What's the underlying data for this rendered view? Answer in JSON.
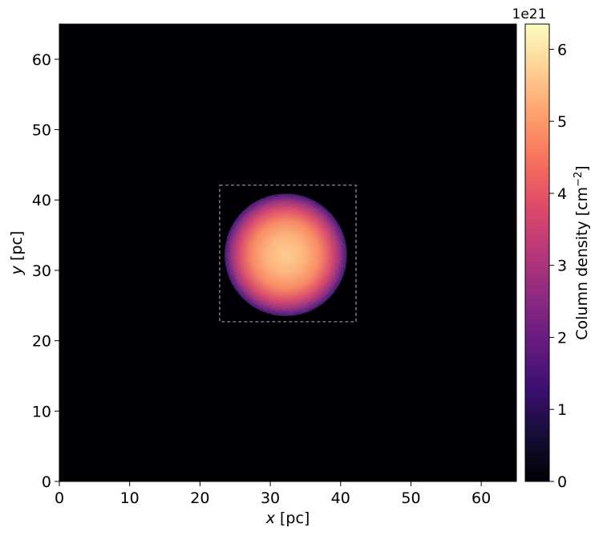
{
  "chart_data": {
    "type": "heatmap",
    "title": "",
    "xlabel": {
      "var": "x",
      "unit": " [pc]"
    },
    "ylabel": {
      "var": "y",
      "unit": " [pc]"
    },
    "xlim": [
      0,
      65
    ],
    "ylim": [
      0,
      65
    ],
    "xticks": [
      0,
      10,
      20,
      30,
      40,
      50,
      60
    ],
    "yticks": [
      0,
      10,
      20,
      30,
      40,
      50,
      60
    ],
    "colormap": "magma",
    "background_value": 0,
    "cloud": {
      "center": [
        32.2,
        32.2
      ],
      "radius": 8.7,
      "peak_value_1e21": 5.4,
      "edge_value_1e21": 1.3
    },
    "inset_box": {
      "x_range": [
        22.8,
        42.2
      ],
      "y_range": [
        22.7,
        42.1
      ],
      "color": "#999999",
      "style": "dashed"
    },
    "colorbar": {
      "label": "Column density [cm",
      "label_exponent": "−2",
      "label_close": "]",
      "offset_text": "1e21",
      "range": [
        0,
        6.35
      ],
      "ticks": [
        0,
        1,
        2,
        3,
        4,
        5,
        6
      ]
    },
    "grid": false,
    "legend": "none"
  }
}
